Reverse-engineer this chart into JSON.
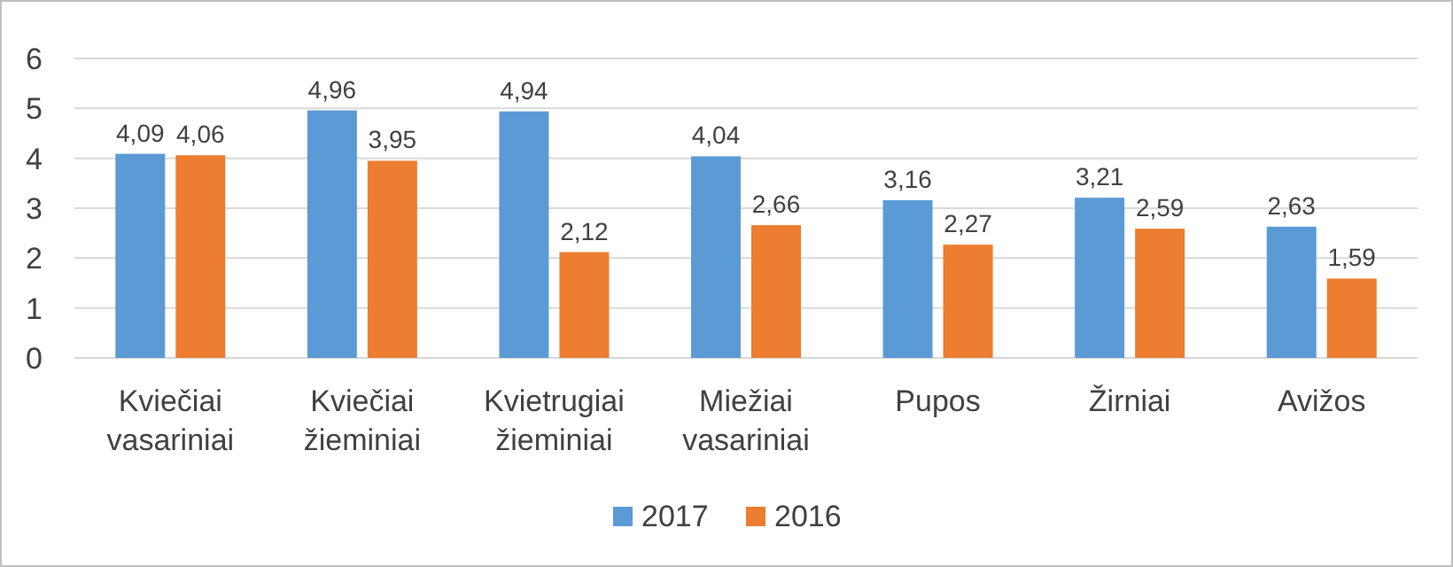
{
  "chart_data": {
    "type": "bar",
    "categories": [
      "Kviečiai vasariniai",
      "Kviečiai žieminiai",
      "Kvietrugiai žieminiai",
      "Miežiai vasariniai",
      "Pupos",
      "Žirniai",
      "Avižos"
    ],
    "series": [
      {
        "name": "2017",
        "color": "#5b9bd5",
        "values": [
          4.09,
          4.96,
          4.94,
          4.04,
          3.16,
          3.21,
          2.63
        ],
        "value_labels": [
          "4,09",
          "4,96",
          "4,94",
          "4,04",
          "3,16",
          "3,21",
          "2,63"
        ]
      },
      {
        "name": "2016",
        "color": "#ed7d31",
        "values": [
          4.06,
          3.95,
          2.12,
          2.66,
          2.27,
          2.59,
          1.59
        ],
        "value_labels": [
          "4,06",
          "3,95",
          "2,12",
          "2,66",
          "2,27",
          "2,59",
          "1,59"
        ]
      }
    ],
    "ylim": [
      0,
      6
    ],
    "yticks": [
      0,
      1,
      2,
      3,
      4,
      5,
      6
    ],
    "grid": "y",
    "legend": "bottom"
  }
}
